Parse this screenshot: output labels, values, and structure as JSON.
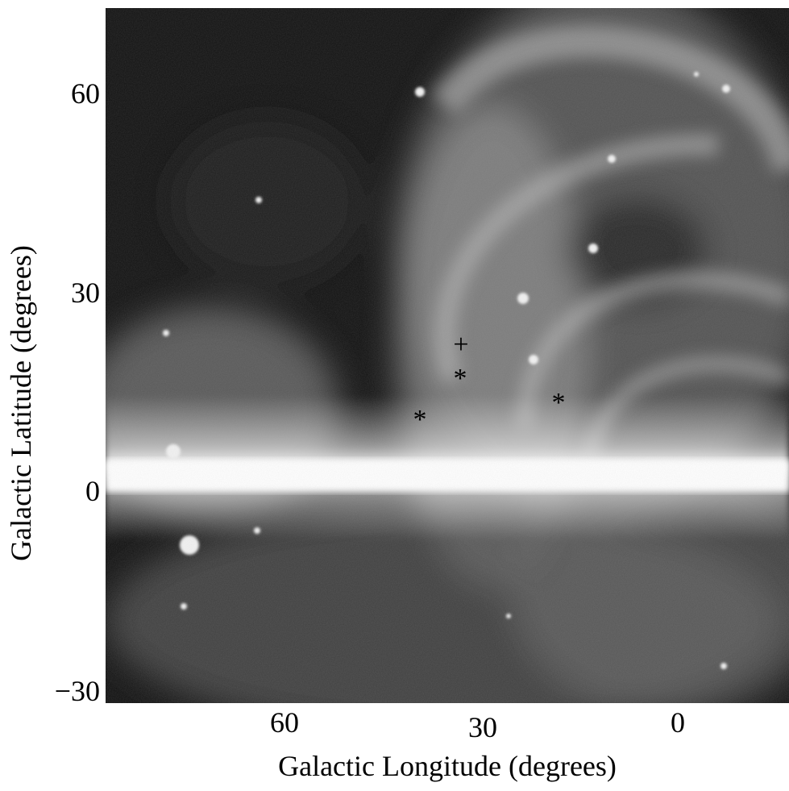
{
  "axes": {
    "xlabel": "Galactic Longitude (degrees)",
    "ylabel": "Galactic Latitude (degrees)",
    "xticks": [
      "60",
      "30",
      "0"
    ],
    "yticks": [
      "60",
      "30",
      "0",
      "−30"
    ]
  },
  "markers": {
    "plus": "+",
    "asterisk": "*"
  },
  "image": {
    "type": "grayscale all-sky map",
    "colors": {
      "dark": "#0d0d0d",
      "bright": "#ffffff"
    }
  }
}
